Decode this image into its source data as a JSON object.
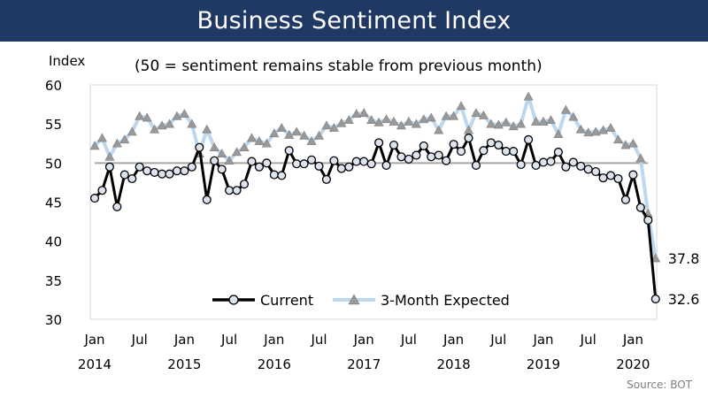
{
  "chart_data": {
    "type": "line",
    "title": "Business Sentiment Index",
    "ylabel": "Index",
    "subtitle": "(50 = sentiment remains stable from previous month)",
    "ylim": [
      30,
      60
    ],
    "yticks": [
      30,
      35,
      40,
      45,
      50,
      55,
      60
    ],
    "reference_line": 50,
    "x_month_labels": [
      "Jan",
      "Jul",
      "Jan",
      "Jul",
      "Jan",
      "Jul",
      "Jan",
      "Jul",
      "Jan",
      "Jul",
      "Jan",
      "Jul",
      "Jan"
    ],
    "x_year_labels": [
      "2014",
      "2015",
      "2016",
      "2017",
      "2018",
      "2019",
      "2020"
    ],
    "start": "Jan 2014",
    "end": "Mar 2020",
    "colors": {
      "current": "#000000",
      "expected": "#bdd7ee",
      "marker_fill": "#dde4ef",
      "triangle": "#999999",
      "reference": "#a6a6a6",
      "title_bg": "#1f3864"
    },
    "series": [
      {
        "name": "Current",
        "values": [
          45.5,
          46.5,
          49.5,
          44.4,
          48.5,
          48.0,
          49.5,
          49.0,
          48.8,
          48.6,
          48.6,
          49.0,
          49.0,
          49.5,
          52.0,
          45.3,
          50.3,
          49.2,
          46.5,
          46.5,
          47.3,
          50.2,
          49.5,
          50.0,
          48.5,
          48.4,
          51.6,
          49.9,
          49.9,
          50.4,
          49.6,
          47.9,
          50.3,
          49.3,
          49.5,
          50.2,
          50.2,
          49.9,
          52.6,
          49.7,
          52.3,
          50.8,
          50.5,
          51.0,
          52.2,
          50.8,
          51.0,
          50.3,
          52.4,
          51.5,
          53.2,
          49.7,
          51.6,
          52.6,
          52.3,
          51.5,
          51.5,
          49.8,
          53.0,
          49.7,
          50.1,
          50.2,
          51.4,
          49.5,
          50.1,
          49.6,
          49.2,
          48.9,
          48.1,
          48.4,
          48.0,
          45.3,
          48.5,
          44.3,
          42.7,
          32.6
        ],
        "end_label": "32.6"
      },
      {
        "name": "3-Month Expected",
        "values": [
          52.2,
          53.2,
          50.8,
          52.5,
          53.0,
          54.0,
          56.0,
          55.8,
          54.3,
          54.8,
          55.0,
          56.0,
          56.3,
          55.0,
          51.2,
          54.3,
          52.0,
          51.2,
          50.3,
          51.4,
          52.0,
          53.2,
          52.8,
          52.5,
          53.8,
          54.5,
          53.6,
          54.0,
          53.5,
          52.8,
          53.5,
          54.8,
          54.5,
          55.1,
          55.5,
          56.3,
          56.4,
          55.5,
          55.2,
          55.6,
          55.3,
          54.8,
          55.3,
          55.0,
          55.6,
          55.8,
          54.2,
          56.0,
          56.0,
          57.3,
          54.2,
          56.4,
          56.1,
          55.0,
          54.9,
          55.2,
          54.7,
          55.0,
          58.5,
          55.3,
          55.3,
          55.5,
          53.7,
          56.8,
          55.9,
          54.3,
          53.9,
          54.0,
          54.2,
          54.5,
          53.0,
          52.3,
          52.5,
          50.6,
          43.5,
          37.8
        ],
        "end_label": "37.8"
      }
    ],
    "source": "Source: BOT"
  }
}
